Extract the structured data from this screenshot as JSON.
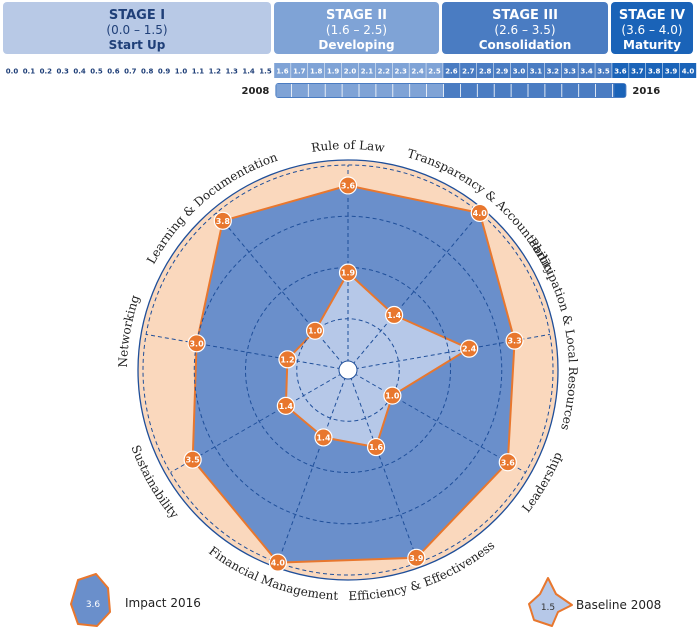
{
  "stages": [
    {
      "title": "STAGE I",
      "range": "(0.0 – 1.5)",
      "name": "Start Up"
    },
    {
      "title": "STAGE II",
      "range": "(1.6 – 2.5)",
      "name": "Developing"
    },
    {
      "title": "STAGE III",
      "range": "(2.6 – 3.5)",
      "name": "Consolidation"
    },
    {
      "title": "STAGE IV",
      "range": "(3.6 – 4.0)",
      "name": "Maturity"
    }
  ],
  "scale_ticks": [
    "0.0",
    "0.1",
    "0.2",
    "0.3",
    "0.4",
    "0.5",
    "0.6",
    "0.7",
    "0.8",
    "0.9",
    "1.0",
    "1.1",
    "1.2",
    "1.3",
    "1.4",
    "1.5",
    "1.6",
    "1.7",
    "1.8",
    "1.9",
    "2.0",
    "2.1",
    "2.2",
    "2.3",
    "2.4",
    "2.5",
    "2.6",
    "2.7",
    "2.8",
    "2.9",
    "3.0",
    "3.1",
    "3.2",
    "3.3",
    "3.4",
    "3.5",
    "3.6",
    "3.7",
    "3.8",
    "3.9",
    "4.0"
  ],
  "progress": {
    "start_label": "2008",
    "end_label": "2016",
    "start_value": 1.6,
    "end_value": 3.6
  },
  "colors": {
    "stage1": "#b8c9e6",
    "stage2": "#7fa3d6",
    "stage3": "#4a7cc2",
    "stage4": "#1a63b8",
    "impact_fill": "#6a8fcb",
    "baseline_fill": "#b6c8e8",
    "outline": "#e8772e",
    "background_ring": "#fad8bd",
    "grid": "#1f4f9a"
  },
  "chart_data": {
    "type": "radar",
    "axes": [
      "Rule of Law",
      "Transparency & Accountability",
      "Participation & Local Resources",
      "Leadership",
      "Efficiency & Effectiveness",
      "Financial Management",
      "Sustainability",
      "Networking",
      "Learning & Documentation"
    ],
    "rlim": [
      0,
      4.0
    ],
    "grid": true,
    "series": [
      {
        "name": "Impact 2016",
        "values": [
          3.6,
          4.0,
          3.3,
          3.6,
          3.9,
          4.0,
          3.5,
          3.0,
          3.8
        ]
      },
      {
        "name": "Baseline 2008",
        "values": [
          1.9,
          1.4,
          2.4,
          1.0,
          1.6,
          1.4,
          1.4,
          1.2,
          1.0
        ]
      }
    ]
  },
  "legend": [
    {
      "label": "Impact 2016",
      "sample_value": "3.6"
    },
    {
      "label": "Baseline 2008",
      "sample_value": "1.5"
    }
  ]
}
